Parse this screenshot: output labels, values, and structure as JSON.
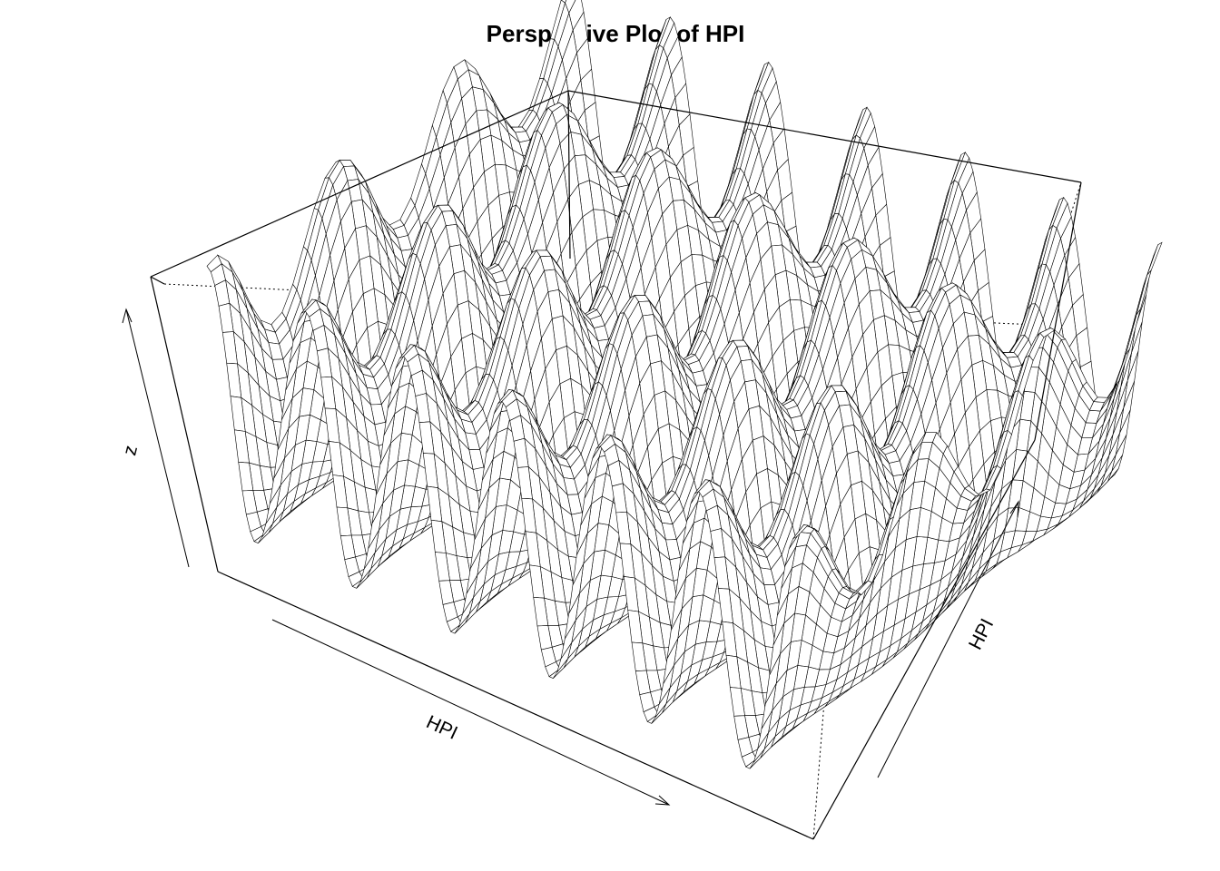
{
  "chart_data": {
    "type": "surface",
    "title": "Perspective Plot of HPI",
    "xlabel": "HPI",
    "ylabel": "HPI",
    "zlabel": "z",
    "box": true,
    "ticks": false,
    "surface": {
      "description_of_shape": "ridged sinusoidal surface",
      "ridges_along_x": 6,
      "mesh_color": "#000000",
      "fill_color": "#ffffff"
    }
  }
}
